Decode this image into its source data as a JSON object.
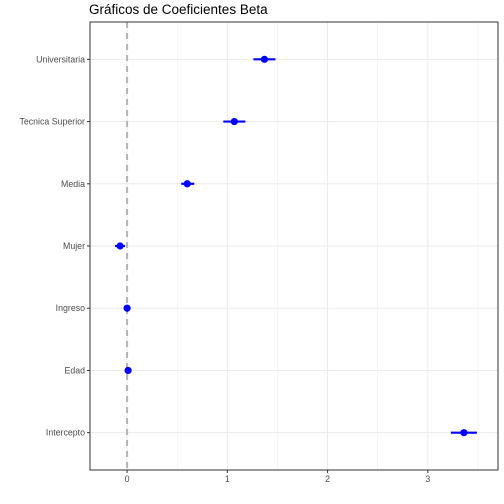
{
  "chart_data": {
    "type": "scatter",
    "title": "Gráficos de Coeficientes Beta",
    "xlabel": "",
    "ylabel": "",
    "categories": [
      "Universitaria",
      "Tecnica Superior",
      "Media",
      "Mujer",
      "Ingreso",
      "Edad",
      "Intercepto"
    ],
    "series": [
      {
        "estimate": [
          1.37,
          1.07,
          0.6,
          -0.07,
          0.0,
          0.01,
          3.36
        ],
        "lower": [
          1.26,
          0.96,
          0.54,
          -0.12,
          -0.01,
          -0.01,
          3.23
        ],
        "upper": [
          1.48,
          1.18,
          0.67,
          -0.02,
          0.01,
          0.02,
          3.49
        ]
      }
    ],
    "xlim": [
      -0.37,
      3.7
    ],
    "xticks": [
      "0",
      "1",
      "2",
      "3"
    ],
    "xtick_values": [
      0,
      1,
      2,
      3
    ],
    "reference_line": 0,
    "grid": true,
    "colors": {
      "point": "#0000ff",
      "reference_line": "#b3b3b3",
      "grid": "#ebebeb",
      "axis": "#333333"
    }
  }
}
